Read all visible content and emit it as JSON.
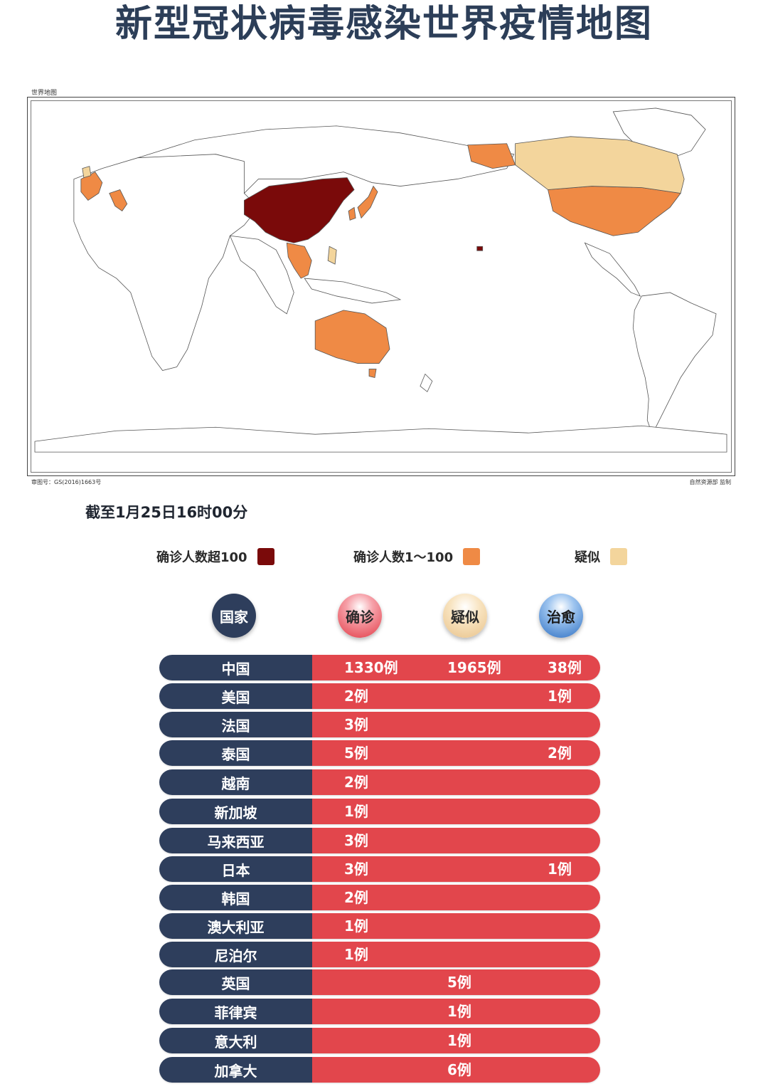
{
  "title": "新型冠状病毒感染世界疫情地图",
  "map": {
    "caption": "世界地图",
    "approval_number": "审图号：GS(2016)1663号",
    "credit": "自然资源部 监制"
  },
  "as_of": "截至1月25日16时00分",
  "legend": [
    {
      "label": "确诊人数超100",
      "color": "#7a0a0a"
    },
    {
      "label": "确诊人数1～100",
      "color": "#ef8a45"
    },
    {
      "label": "疑似",
      "color": "#f3d59c"
    }
  ],
  "columns": {
    "country": "国家",
    "confirmed": "确诊",
    "suspected": "疑似",
    "cured": "治愈"
  },
  "rows": [
    {
      "country": "中国",
      "confirmed": "1330例",
      "suspected": "1965例",
      "cured": "38例"
    },
    {
      "country": "美国",
      "confirmed": "2例",
      "cured": "1例"
    },
    {
      "country": "法国",
      "confirmed": "3例"
    },
    {
      "country": "泰国",
      "confirmed": "5例",
      "cured": "2例"
    },
    {
      "country": "越南",
      "confirmed": "2例"
    },
    {
      "country": "新加坡",
      "confirmed": "1例"
    },
    {
      "country": "马来西亚",
      "confirmed": "3例"
    },
    {
      "country": "日本",
      "confirmed": "3例",
      "cured": "1例"
    },
    {
      "country": "韩国",
      "confirmed": "2例"
    },
    {
      "country": "澳大利亚",
      "confirmed": "1例"
    },
    {
      "country": "尼泊尔",
      "confirmed": "1例"
    },
    {
      "country": "英国",
      "suspected": "5例"
    },
    {
      "country": "菲律宾",
      "suspected": "1例"
    },
    {
      "country": "意大利",
      "suspected": "1例"
    },
    {
      "country": "加拿大",
      "suspected": "6例"
    }
  ]
}
